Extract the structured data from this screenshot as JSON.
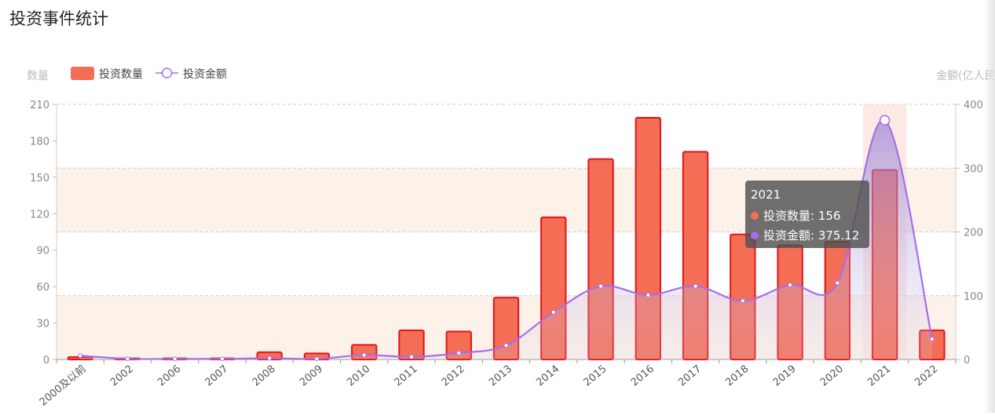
{
  "page": {
    "title": "投资事件统计"
  },
  "chart_data": {
    "type": "bar",
    "categories": [
      "2000及以前",
      "2002",
      "2006",
      "2007",
      "2008",
      "2009",
      "2010",
      "2011",
      "2012",
      "2013",
      "2014",
      "2015",
      "2016",
      "2017",
      "2018",
      "2019",
      "2020",
      "2021",
      "2022"
    ],
    "series": [
      {
        "name": "投资数量",
        "type": "bar",
        "axis": "left",
        "color": "#f46e56",
        "border": "#e0141c",
        "values": [
          2,
          1,
          1,
          1,
          6,
          5,
          12,
          24,
          23,
          51,
          117,
          165,
          199,
          171,
          103,
          94,
          97,
          156,
          24
        ]
      },
      {
        "name": "投资金额",
        "type": "line",
        "axis": "right",
        "color": "#a66ee8",
        "values": [
          6,
          1,
          1,
          1,
          2,
          1,
          7,
          4,
          10,
          22,
          74,
          115,
          101,
          115,
          92,
          117,
          120,
          375.12,
          32
        ]
      }
    ],
    "yAxisLeft": {
      "label": "数量",
      "min": 0,
      "max": 210,
      "ticks": [
        0,
        30,
        60,
        90,
        120,
        150,
        180,
        210
      ]
    },
    "yAxisRight": {
      "label": "金额(亿人民",
      "min": 0,
      "max": 400,
      "ticks": [
        0,
        100,
        200,
        300,
        400
      ]
    },
    "legend": {
      "position": "top-left"
    },
    "grid": true,
    "highlight_category": "2021",
    "tooltip": {
      "title": "2021",
      "rows": [
        {
          "label": "投资数量: 156",
          "color": "#f46e56"
        },
        {
          "label": "投资金额: 375.12",
          "color": "#a66ee8"
        }
      ]
    }
  }
}
